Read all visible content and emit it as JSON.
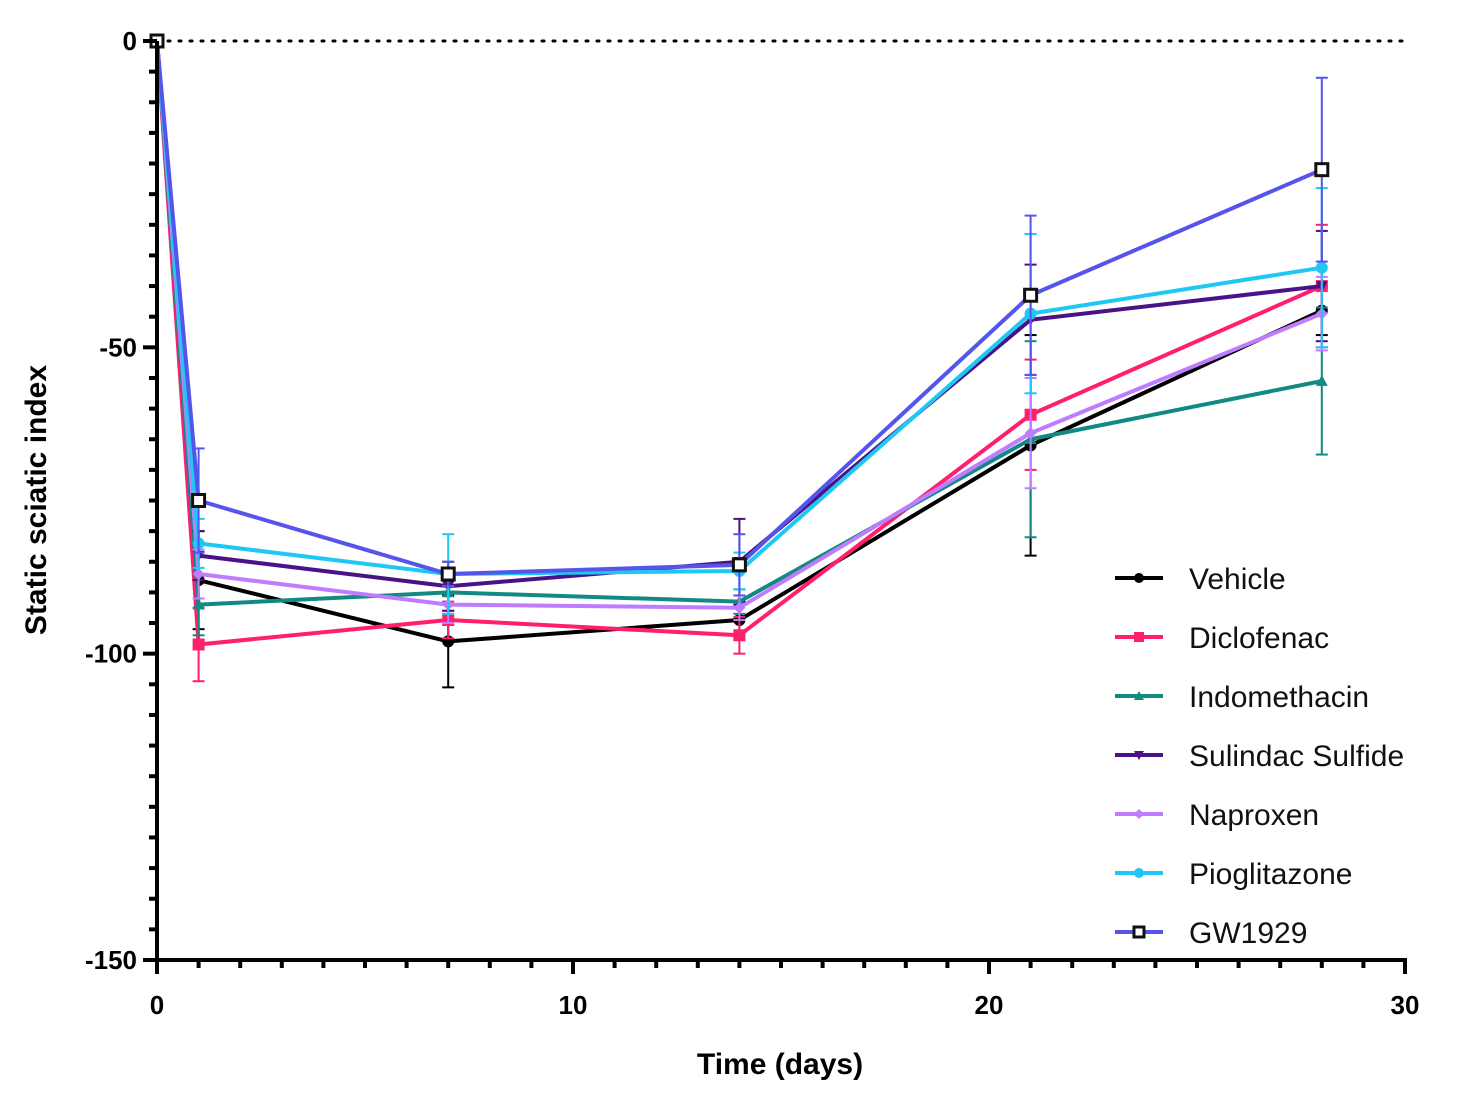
{
  "chart_data": {
    "type": "line",
    "xlabel": "Time (days)",
    "ylabel": "Static sciatic index",
    "xlim": [
      0,
      30
    ],
    "ylim": [
      -150,
      0
    ],
    "x_ticks": [
      "0",
      "10",
      "20",
      "30"
    ],
    "y_ticks": [
      "0",
      "-50",
      "-100",
      "-150"
    ],
    "reference_line": {
      "y": 0,
      "style": "dotted"
    },
    "legend_position": "bottom-right",
    "x": [
      0,
      1,
      7,
      14,
      21,
      28
    ],
    "series": [
      {
        "name": "Vehicle",
        "color": "#000000",
        "marker": "circle",
        "values": [
          0,
          -88,
          -98,
          -94.5,
          -66,
          -44
        ],
        "errors": [
          0,
          8,
          7.5,
          3,
          18,
          4
        ]
      },
      {
        "name": "Diclofenac",
        "color": "#ff1f6b",
        "marker": "square",
        "values": [
          0,
          -98.5,
          -94.5,
          -97,
          -61,
          -40
        ],
        "errors": [
          0,
          6,
          3,
          3,
          9,
          10
        ]
      },
      {
        "name": "Indomethacin",
        "color": "#128a82",
        "marker": "triangle",
        "values": [
          0,
          -92,
          -90,
          -91.5,
          -65,
          -55.5
        ],
        "errors": [
          0,
          5,
          3,
          2,
          16,
          12
        ]
      },
      {
        "name": "Sulindac Sulfide",
        "color": "#4b1287",
        "marker": "triangle-down",
        "values": [
          0,
          -84,
          -89,
          -85,
          -45.5,
          -40
        ],
        "errors": [
          0,
          4,
          4,
          7,
          9,
          9
        ]
      },
      {
        "name": "Naproxen",
        "color": "#c07cff",
        "marker": "diamond",
        "values": [
          0,
          -87,
          -92,
          -92.5,
          -64,
          -44.5
        ],
        "errors": [
          0,
          4,
          3,
          2,
          9,
          6
        ]
      },
      {
        "name": "Pioglitazone",
        "color": "#1fc8f2",
        "marker": "circle",
        "values": [
          0,
          -82,
          -87,
          -86.5,
          -44.5,
          -37
        ],
        "errors": [
          0,
          4,
          6.5,
          3,
          13,
          13
        ]
      },
      {
        "name": "GW1929",
        "color": "#5555ec",
        "marker": "hollow-square",
        "values": [
          0,
          -75,
          -87,
          -85.5,
          -41.5,
          -21
        ],
        "errors": [
          0,
          8.5,
          2,
          5,
          13,
          15
        ]
      }
    ]
  }
}
